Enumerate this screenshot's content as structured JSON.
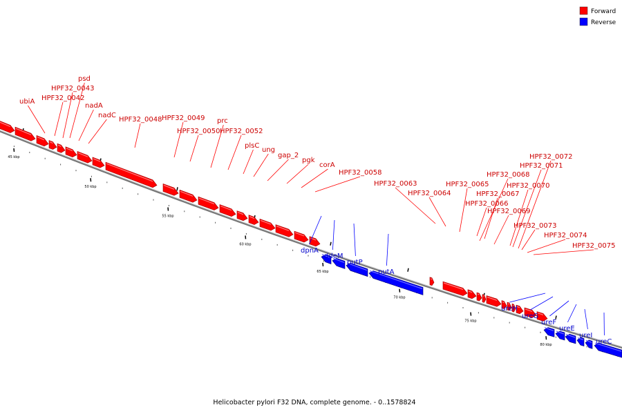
{
  "caption": "Helicobacter pylori F32 DNA, complete genome. - 0..1578824",
  "legend": [
    {
      "label": "Forward",
      "color": "#ff0000"
    },
    {
      "label": "Reverse",
      "color": "#0000ff"
    }
  ],
  "ticks": [
    "45 kbp",
    "50 kbp",
    "55 kbp",
    "60 kbp",
    "65 kbp",
    "70 kbp",
    "75 kbp",
    "80 kbp"
  ],
  "forward_labels": [
    "ubiA",
    "HPF32_0042",
    "HPF32_0043",
    "psd",
    "nadA",
    "nadC",
    "HPF32_0048",
    "HPF32_0049",
    "HPF32_0050",
    "prc",
    "HPF32_0052",
    "plsC",
    "ung",
    "gap_2",
    "pgk",
    "corA",
    "HPF32_0058",
    "HPF32_0063",
    "HPF32_0064",
    "HPF32_0065",
    "HPF32_0066",
    "HPF32_0067",
    "HPF32_0068",
    "HPF32_0069",
    "HPF32_0070",
    "HPF32_0071",
    "HPF32_0072",
    "HPF32_0073",
    "HPF32_0074",
    "HPF32_0075"
  ],
  "reverse_labels": [
    "dpnA",
    "ddeM",
    "putP",
    "putA",
    "ureH",
    "ureG",
    "ureF",
    "ureE",
    "ureI",
    "ureC"
  ]
}
